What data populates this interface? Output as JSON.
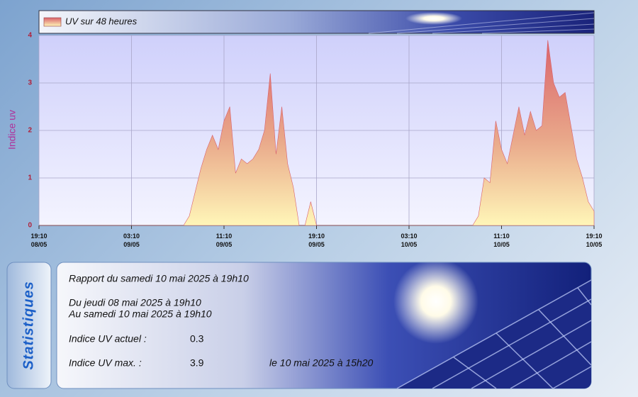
{
  "chart_data": {
    "type": "area",
    "ylabel": "Indice uv",
    "x": [
      "08/05 19:10",
      "08/05 19:40",
      "08/05 20:10",
      "08/05 20:40",
      "08/05 21:10",
      "08/05 21:40",
      "08/05 22:10",
      "08/05 22:40",
      "08/05 23:10",
      "08/05 23:40",
      "09/05 00:10",
      "09/05 00:40",
      "09/05 01:10",
      "09/05 01:40",
      "09/05 02:10",
      "09/05 02:40",
      "09/05 03:10",
      "09/05 03:40",
      "09/05 04:10",
      "09/05 04:40",
      "09/05 05:10",
      "09/05 05:40",
      "09/05 06:10",
      "09/05 06:40",
      "09/05 07:10",
      "09/05 07:40",
      "09/05 08:10",
      "09/05 08:40",
      "09/05 09:10",
      "09/05 09:40",
      "09/05 10:10",
      "09/05 10:40",
      "09/05 11:10",
      "09/05 11:40",
      "09/05 12:10",
      "09/05 12:40",
      "09/05 13:10",
      "09/05 13:40",
      "09/05 14:10",
      "09/05 14:40",
      "09/05 15:10",
      "09/05 15:40",
      "09/05 16:10",
      "09/05 16:40",
      "09/05 17:10",
      "09/05 17:40",
      "09/05 18:10",
      "09/05 18:40",
      "09/05 19:10",
      "09/05 19:40",
      "09/05 20:10",
      "09/05 20:40",
      "09/05 21:10",
      "09/05 21:40",
      "09/05 22:10",
      "09/05 22:40",
      "09/05 23:10",
      "09/05 23:40",
      "10/05 00:10",
      "10/05 00:40",
      "10/05 01:10",
      "10/05 01:40",
      "10/05 02:10",
      "10/05 02:40",
      "10/05 03:10",
      "10/05 03:40",
      "10/05 04:10",
      "10/05 04:40",
      "10/05 05:10",
      "10/05 05:40",
      "10/05 06:10",
      "10/05 06:40",
      "10/05 07:10",
      "10/05 07:40",
      "10/05 08:10",
      "10/05 08:40",
      "10/05 09:10",
      "10/05 09:40",
      "10/05 10:10",
      "10/05 10:40",
      "10/05 11:10",
      "10/05 11:40",
      "10/05 12:10",
      "10/05 12:40",
      "10/05 13:10",
      "10/05 13:40",
      "10/05 14:10",
      "10/05 14:40",
      "10/05 15:10",
      "10/05 15:40",
      "10/05 16:10",
      "10/05 16:40",
      "10/05 17:10",
      "10/05 17:40",
      "10/05 18:10",
      "10/05 18:40",
      "10/05 19:10"
    ],
    "series": [
      {
        "name": "UV sur 48 heures",
        "color": "#d9606a",
        "values": [
          0,
          0,
          0,
          0,
          0,
          0,
          0,
          0,
          0,
          0,
          0,
          0,
          0,
          0,
          0,
          0,
          0,
          0,
          0,
          0,
          0,
          0,
          0,
          0,
          0,
          0,
          0.2,
          0.7,
          1.2,
          1.6,
          1.9,
          1.6,
          2.2,
          2.5,
          1.1,
          1.4,
          1.3,
          1.4,
          1.6,
          2.0,
          3.2,
          1.5,
          2.5,
          1.3,
          0.8,
          0,
          0,
          0.5,
          0,
          0,
          0,
          0,
          0,
          0,
          0,
          0,
          0,
          0,
          0,
          0,
          0,
          0,
          0,
          0,
          0,
          0,
          0,
          0,
          0,
          0,
          0,
          0,
          0,
          0,
          0,
          0,
          0.2,
          1.0,
          0.9,
          2.2,
          1.6,
          1.3,
          1.9,
          2.5,
          1.9,
          2.4,
          2.0,
          2.1,
          3.9,
          3.0,
          2.7,
          2.8,
          2.1,
          1.4,
          1.0,
          0.5,
          0.3
        ]
      }
    ],
    "xlim": [
      "08/05 19:10",
      "10/05 19:10"
    ],
    "xticks": [
      {
        "value": "08/05 19:10",
        "label": "19:10\n08/05"
      },
      {
        "value": "09/05 03:10",
        "label": "03:10\n09/05"
      },
      {
        "value": "09/05 11:10",
        "label": "11:10\n09/05"
      },
      {
        "value": "09/05 19:10",
        "label": "19:10\n09/05"
      },
      {
        "value": "10/05 03:10",
        "label": "03:10\n10/05"
      },
      {
        "value": "10/05 11:10",
        "label": "11:10\n10/05"
      },
      {
        "value": "10/05 19:10",
        "label": "19:10\n10/05"
      }
    ],
    "ylim": [
      0,
      4
    ],
    "yticks": [
      0,
      1,
      2,
      3,
      4
    ],
    "grid": true
  },
  "stats": {
    "tab": "Statistiques",
    "report": "Rapport du samedi 10 mai 2025 à 19h10",
    "from": "Du jeudi 08 mai 2025 à 19h10",
    "to": "Au samedi 10 mai 2025 à 19h10",
    "rows": [
      [
        "Indice UV actuel :",
        "0.3"
      ],
      [
        "Indice UV max. :",
        "3.9",
        "le 10 mai 2025 à 15h20"
      ]
    ]
  }
}
